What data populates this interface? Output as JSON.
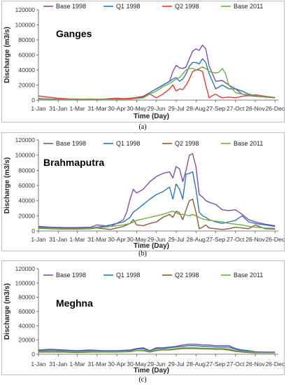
{
  "chart_data": [
    {
      "type": "line",
      "panel_label": "(a)",
      "title": "Ganges",
      "xlabel": "Time (Day)",
      "ylabel": "Discharge (m3/s)",
      "ylim": [
        0,
        120000
      ],
      "yticks": [
        0,
        20000,
        40000,
        60000,
        80000,
        100000,
        120000
      ],
      "xlim": [
        1,
        365
      ],
      "x_tick_labels": [
        "1-Jan",
        "31-Jan",
        "1-Mar",
        "31-Mar",
        "30-Apr",
        "30-May",
        "29-Jun",
        "29-Jul",
        "28-Aug",
        "27-Sep",
        "27-Oct",
        "26-Nov",
        "26-Dec"
      ],
      "x_tick_days": [
        1,
        31,
        60,
        90,
        120,
        150,
        180,
        210,
        240,
        270,
        300,
        330,
        360
      ],
      "legend_position": "top",
      "grid": false,
      "series": [
        {
          "name": "Base 1998",
          "color": "#7f4fa8",
          "x": [
            1,
            20,
            40,
            60,
            80,
            100,
            120,
            140,
            160,
            170,
            180,
            190,
            200,
            205,
            210,
            215,
            220,
            225,
            230,
            235,
            240,
            245,
            250,
            255,
            260,
            270,
            280,
            290,
            300,
            310,
            320,
            330,
            345,
            360
          ],
          "y": [
            2000,
            1500,
            1200,
            1000,
            1000,
            1200,
            1500,
            2000,
            5000,
            10000,
            15000,
            20000,
            25000,
            38000,
            46000,
            43000,
            42000,
            44000,
            55000,
            65000,
            68000,
            66000,
            73000,
            68000,
            45000,
            25000,
            26000,
            20000,
            15000,
            8000,
            6000,
            5000,
            4000,
            3000
          ]
        },
        {
          "name": "Q1 1998",
          "color": "#2e75b6",
          "x": [
            1,
            20,
            40,
            60,
            80,
            100,
            120,
            140,
            160,
            170,
            180,
            190,
            200,
            205,
            210,
            215,
            220,
            225,
            230,
            235,
            240,
            245,
            250,
            255,
            260,
            270,
            280,
            290,
            300,
            310,
            320,
            330,
            345,
            360
          ],
          "y": [
            1500,
            1200,
            1000,
            800,
            800,
            1000,
            1200,
            1500,
            4000,
            10000,
            15000,
            20000,
            25000,
            28000,
            30000,
            25000,
            28000,
            35000,
            45000,
            50000,
            50000,
            48000,
            55000,
            50000,
            35000,
            15000,
            20000,
            15000,
            15000,
            12000,
            8000,
            6000,
            4000,
            3000
          ]
        },
        {
          "name": "Q2 1998",
          "color": "#e03a3a",
          "x": [
            1,
            10,
            20,
            30,
            40,
            50,
            60,
            70,
            80,
            90,
            100,
            110,
            120,
            130,
            140,
            150,
            160,
            170,
            180,
            190,
            200,
            205,
            210,
            215,
            220,
            225,
            230,
            235,
            240,
            245,
            250,
            255,
            260,
            265,
            270,
            275,
            280,
            290,
            300,
            310,
            320,
            330,
            345,
            360
          ],
          "y": [
            5500,
            4500,
            3500,
            2500,
            2000,
            1500,
            1500,
            1200,
            1500,
            1200,
            1500,
            2000,
            2500,
            2000,
            2500,
            3000,
            5000,
            8000,
            3000,
            8000,
            15000,
            20000,
            12000,
            15000,
            14000,
            20000,
            28000,
            38000,
            40000,
            40000,
            38000,
            20000,
            3000,
            6000,
            8000,
            5000,
            3000,
            4000,
            3000,
            5000,
            6000,
            7000,
            5000,
            3500
          ]
        },
        {
          "name": "Base 2011",
          "color": "#70ad47",
          "x": [
            1,
            20,
            40,
            60,
            80,
            100,
            120,
            140,
            160,
            170,
            180,
            190,
            200,
            205,
            210,
            215,
            220,
            225,
            230,
            235,
            240,
            245,
            250,
            255,
            260,
            270,
            275,
            280,
            285,
            290,
            300,
            310,
            320,
            330,
            345,
            360
          ],
          "y": [
            1500,
            1200,
            1000,
            800,
            800,
            1000,
            1000,
            1200,
            3000,
            8000,
            12000,
            18000,
            22000,
            25000,
            28000,
            30000,
            35000,
            40000,
            42000,
            42000,
            40000,
            42000,
            44000,
            42000,
            38000,
            36000,
            37000,
            42000,
            35000,
            20000,
            10000,
            8000,
            7000,
            6000,
            4000,
            3000
          ]
        }
      ]
    },
    {
      "type": "line",
      "panel_label": "(b)",
      "title": "Brahmaputra",
      "xlabel": "Time (Day)",
      "ylabel": "Discharge (m3/s)",
      "ylim": [
        0,
        120000
      ],
      "yticks": [
        0,
        20000,
        40000,
        60000,
        80000,
        100000,
        120000
      ],
      "xlim": [
        1,
        365
      ],
      "x_tick_labels": [
        "1-Jan",
        "31-Jan",
        "1-Mar",
        "31-Mar",
        "30-Apr",
        "30-May",
        "29-Jun",
        "29-Jul",
        "28-Aug",
        "27-Sep",
        "27-Oct",
        "26-Nov",
        "26-Dec"
      ],
      "x_tick_days": [
        1,
        31,
        60,
        90,
        120,
        150,
        180,
        210,
        240,
        270,
        300,
        330,
        360
      ],
      "legend_position": "top",
      "grid": false,
      "series": [
        {
          "name": "Base 1998",
          "color": "#7f4fa8",
          "x": [
            1,
            20,
            40,
            60,
            80,
            90,
            100,
            110,
            120,
            130,
            135,
            140,
            145,
            150,
            160,
            170,
            180,
            190,
            200,
            205,
            210,
            215,
            220,
            225,
            230,
            235,
            240,
            245,
            250,
            255,
            260,
            270,
            280,
            290,
            300,
            310,
            320,
            330,
            345,
            360
          ],
          "y": [
            6000,
            5000,
            4500,
            4500,
            5000,
            8000,
            7000,
            6000,
            10000,
            15000,
            25000,
            42000,
            55000,
            50000,
            55000,
            65000,
            72000,
            76000,
            78000,
            70000,
            85000,
            82000,
            65000,
            80000,
            100000,
            102000,
            85000,
            48000,
            45000,
            40000,
            38000,
            35000,
            28000,
            27000,
            28000,
            22000,
            15000,
            12000,
            9000,
            7000
          ]
        },
        {
          "name": "Q1 1998",
          "color": "#2e75b6",
          "x": [
            1,
            20,
            40,
            60,
            80,
            90,
            100,
            110,
            120,
            130,
            135,
            140,
            145,
            150,
            160,
            170,
            180,
            190,
            200,
            205,
            210,
            215,
            220,
            225,
            230,
            235,
            240,
            245,
            250,
            255,
            260,
            270,
            280,
            290,
            300,
            310,
            320,
            330,
            345,
            360
          ],
          "y": [
            5000,
            4000,
            3500,
            3500,
            4000,
            5000,
            6000,
            8000,
            10000,
            12000,
            15000,
            18000,
            25000,
            28000,
            35000,
            42000,
            48000,
            52000,
            58000,
            42000,
            62000,
            55000,
            42000,
            75000,
            76000,
            78000,
            55000,
            25000,
            20000,
            18000,
            15000,
            12000,
            10000,
            12000,
            14000,
            20000,
            12000,
            10000,
            8000,
            6000
          ]
        },
        {
          "name": "Q2 1998",
          "color": "#8b5a3c",
          "x": [
            1,
            20,
            40,
            60,
            80,
            90,
            100,
            110,
            120,
            130,
            135,
            140,
            145,
            150,
            160,
            170,
            180,
            190,
            200,
            205,
            210,
            215,
            220,
            225,
            230,
            235,
            240,
            245,
            250,
            255,
            260,
            270,
            280,
            290,
            300,
            310,
            320,
            330,
            345,
            360
          ],
          "y": [
            3500,
            3000,
            2500,
            2500,
            3000,
            4000,
            3000,
            2000,
            4000,
            6000,
            8000,
            10000,
            15000,
            8000,
            7000,
            10000,
            12000,
            18000,
            22000,
            18000,
            26000,
            24000,
            15000,
            28000,
            40000,
            42000,
            25000,
            3000,
            5000,
            8000,
            4000,
            3000,
            2000,
            3000,
            5000,
            4000,
            3000,
            8000,
            3000,
            2500
          ]
        },
        {
          "name": "Base 2011",
          "color": "#70ad47",
          "x": [
            1,
            20,
            40,
            60,
            80,
            90,
            100,
            110,
            120,
            130,
            135,
            140,
            145,
            150,
            160,
            170,
            180,
            190,
            200,
            205,
            210,
            215,
            220,
            225,
            230,
            235,
            240,
            245,
            250,
            255,
            260,
            270,
            280,
            290,
            300,
            310,
            320,
            330,
            345,
            360
          ],
          "y": [
            4000,
            3500,
            3000,
            3000,
            3500,
            4000,
            5000,
            6000,
            7000,
            8000,
            9000,
            10000,
            12000,
            14000,
            16000,
            18000,
            20000,
            22000,
            25000,
            26000,
            24000,
            22000,
            22000,
            21000,
            20000,
            22000,
            20000,
            18000,
            16000,
            15000,
            14000,
            13000,
            12000,
            10000,
            9000,
            8000,
            6000,
            5000,
            4000,
            3500
          ]
        }
      ]
    },
    {
      "type": "line",
      "panel_label": "(c)",
      "title": "Meghna",
      "xlabel": "Time (Day)",
      "ylabel": "Discharge (m3/s)",
      "ylim": [
        0,
        120000
      ],
      "yticks": [
        0,
        20000,
        40000,
        60000,
        80000,
        100000,
        120000
      ],
      "xlim": [
        1,
        365
      ],
      "x_tick_labels": [
        "1-Jan",
        "31-Jan",
        "1-Mar",
        "31-Mar",
        "30-Apr",
        "30-May",
        "29-Jun",
        "29-Jul",
        "28-Aug",
        "27-Sep",
        "27-Oct",
        "26-Nov",
        "26-Dec"
      ],
      "x_tick_days": [
        1,
        31,
        60,
        90,
        120,
        150,
        180,
        210,
        240,
        270,
        300,
        330,
        360
      ],
      "legend_position": "top",
      "grid": false,
      "series": [
        {
          "name": "Base 1998",
          "color": "#7f4fa8",
          "x": [
            1,
            20,
            40,
            60,
            80,
            100,
            120,
            140,
            150,
            160,
            170,
            180,
            190,
            200,
            210,
            220,
            230,
            240,
            250,
            260,
            270,
            280,
            290,
            300,
            310,
            320,
            330,
            345,
            360
          ],
          "y": [
            6000,
            7000,
            6000,
            5000,
            6000,
            5000,
            5000,
            6000,
            8000,
            9000,
            5000,
            9000,
            9000,
            10000,
            11000,
            13000,
            14000,
            14000,
            13000,
            13000,
            12000,
            12000,
            12000,
            8000,
            6000,
            5000,
            3500,
            3000,
            3000
          ]
        },
        {
          "name": "Q1 1998",
          "color": "#2e75b6",
          "x": [
            1,
            20,
            40,
            60,
            80,
            100,
            120,
            140,
            150,
            160,
            170,
            180,
            190,
            200,
            210,
            220,
            230,
            240,
            250,
            260,
            270,
            280,
            290,
            300,
            310,
            320,
            330,
            345,
            360
          ],
          "y": [
            5000,
            6000,
            5000,
            4500,
            5000,
            4500,
            4500,
            5000,
            7000,
            8000,
            4500,
            8000,
            8000,
            9000,
            10000,
            11000,
            12000,
            12000,
            11000,
            11000,
            10000,
            10000,
            10000,
            7000,
            5000,
            4500,
            3000,
            2800,
            2800
          ]
        },
        {
          "name": "Q2 1998",
          "color": "#8b5a3c",
          "x": [
            1,
            20,
            40,
            60,
            80,
            100,
            120,
            140,
            150,
            160,
            170,
            180,
            190,
            200,
            210,
            220,
            230,
            240,
            250,
            260,
            270,
            280,
            290,
            300,
            310,
            320,
            330,
            345,
            360
          ],
          "y": [
            3000,
            3000,
            3000,
            2500,
            3000,
            3000,
            3000,
            3500,
            5000,
            5000,
            3000,
            5000,
            6000,
            6000,
            7000,
            8000,
            8000,
            8000,
            7500,
            7500,
            7000,
            7000,
            6000,
            4000,
            3000,
            2500,
            2000,
            1800,
            1800
          ]
        },
        {
          "name": "Base 2011",
          "color": "#70ad47",
          "x": [
            1,
            20,
            40,
            60,
            80,
            100,
            120,
            140,
            150,
            160,
            170,
            180,
            190,
            200,
            210,
            220,
            230,
            240,
            250,
            260,
            270,
            280,
            290,
            300,
            310,
            320,
            330,
            345,
            360
          ],
          "y": [
            4000,
            4500,
            4000,
            3500,
            4000,
            3500,
            3500,
            4000,
            5000,
            6000,
            3500,
            6000,
            6500,
            7000,
            8000,
            9000,
            9000,
            9000,
            8500,
            8500,
            8000,
            8000,
            7500,
            5000,
            4000,
            3500,
            2500,
            2200,
            2200
          ]
        }
      ]
    }
  ]
}
